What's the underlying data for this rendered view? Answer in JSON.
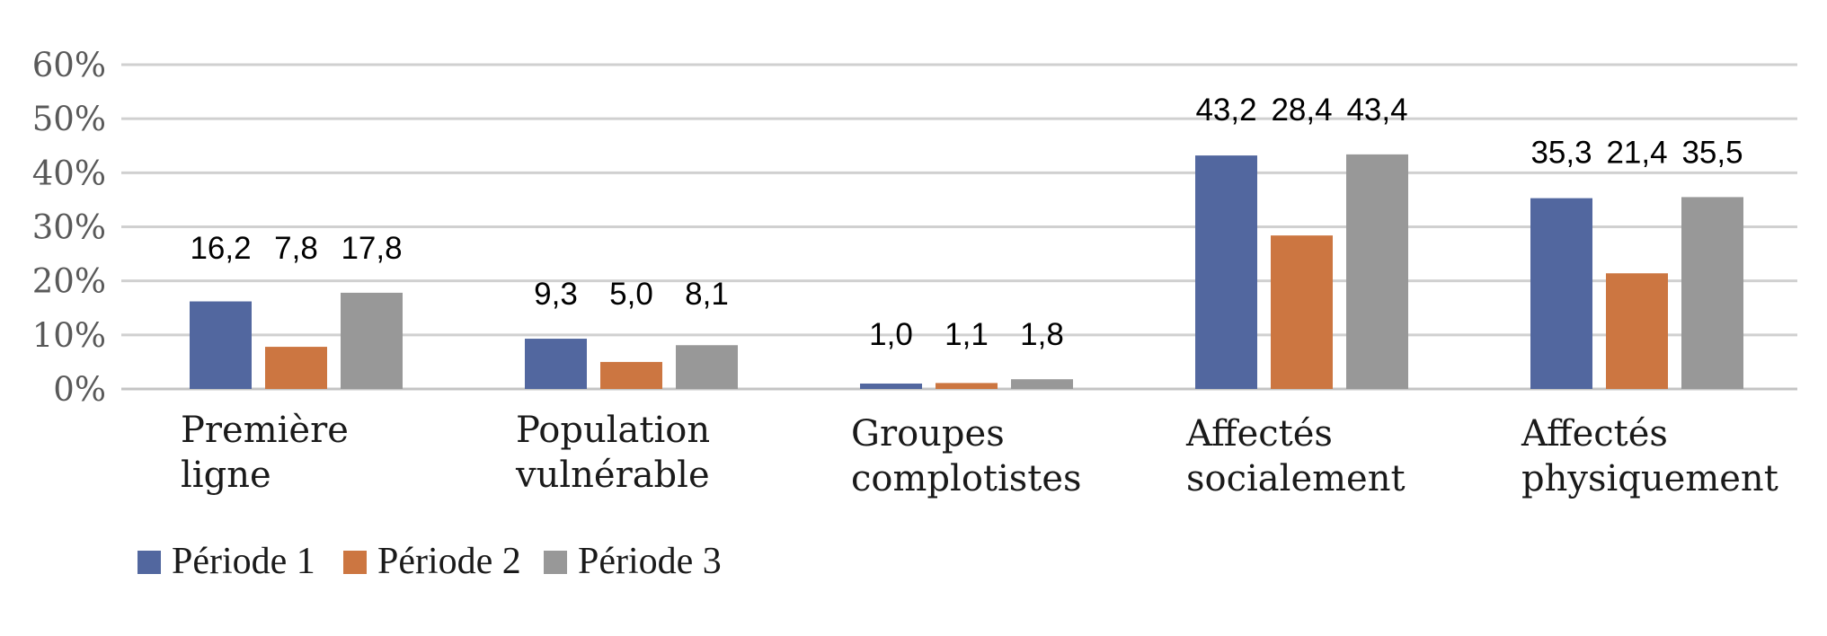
{
  "chart_data": {
    "type": "bar",
    "categories": [
      [
        "Première",
        "ligne"
      ],
      [
        "Population",
        "vulnérable"
      ],
      [
        "Groupes",
        "complotistes"
      ],
      [
        "Affectés",
        "socialement"
      ],
      [
        "Affectés",
        "physiquement"
      ]
    ],
    "series": [
      {
        "name": "Période 1",
        "color": "#52679f",
        "values": [
          16.2,
          9.3,
          1.0,
          43.2,
          35.3
        ],
        "labels": [
          "16,2",
          "9,3",
          "1,0",
          "43,2",
          "35,3"
        ]
      },
      {
        "name": "Période 2",
        "color": "#cc7641",
        "values": [
          7.8,
          5.0,
          1.1,
          28.4,
          21.4
        ],
        "labels": [
          "7,8",
          "5,0",
          "1,1",
          "28,4",
          "21,4"
        ]
      },
      {
        "name": "Période 3",
        "color": "#989898",
        "values": [
          17.8,
          8.1,
          1.8,
          43.4,
          35.5
        ],
        "labels": [
          "17,8",
          "8,1",
          "1,8",
          "43,4",
          "35,5"
        ]
      }
    ],
    "yticks": [
      "0%",
      "10%",
      "20%",
      "30%",
      "40%",
      "50%",
      "60%"
    ],
    "ylim": [
      0,
      60
    ],
    "grid": true,
    "legend_position": "bottom-left",
    "title": "",
    "xlabel": "",
    "ylabel": ""
  }
}
